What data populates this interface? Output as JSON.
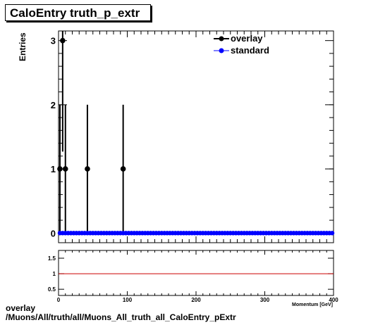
{
  "title": "CaloEntry truth_p_extr",
  "footer": {
    "line1": "overlay",
    "line2": "/Muons/All/truth/all/Muons_All_truth_all_CaloEntry_pExtr"
  },
  "legend": {
    "overlay_label": "overlay",
    "standard_label": "standard"
  },
  "colors": {
    "overlay": "#000000",
    "standard": "#0000ff",
    "ratio_line": "#cc0000"
  },
  "chart_data": [
    {
      "type": "scatter",
      "ylabel": "Entries",
      "xlabel": "Momentum [GeV]",
      "xlim": [
        0,
        400
      ],
      "ylim": [
        -0.15,
        3.15
      ],
      "x_ticks": [
        0,
        100,
        200,
        300,
        400
      ],
      "y_ticks": [
        0,
        1,
        2,
        3
      ],
      "legend_position": "top-right",
      "series": [
        {
          "name": "overlay",
          "points": [
            {
              "x": 2,
              "y": 1,
              "err": 1
            },
            {
              "x": 6,
              "y": 3,
              "err": 1.73
            },
            {
              "x": 10,
              "y": 1,
              "err": 1
            },
            {
              "x": 42,
              "y": 1,
              "err": 1
            },
            {
              "x": 94,
              "y": 1,
              "err": 1
            }
          ]
        },
        {
          "name": "standard",
          "x_start": 2,
          "x_step": 4,
          "count": 100,
          "y": 0
        }
      ]
    },
    {
      "type": "line",
      "xlim": [
        0,
        400
      ],
      "ylim": [
        0.3,
        1.75
      ],
      "x_ticks": [
        0,
        100,
        200,
        300,
        400
      ],
      "y_ticks": [
        0.5,
        1,
        1.5
      ],
      "line_y": 1
    }
  ]
}
